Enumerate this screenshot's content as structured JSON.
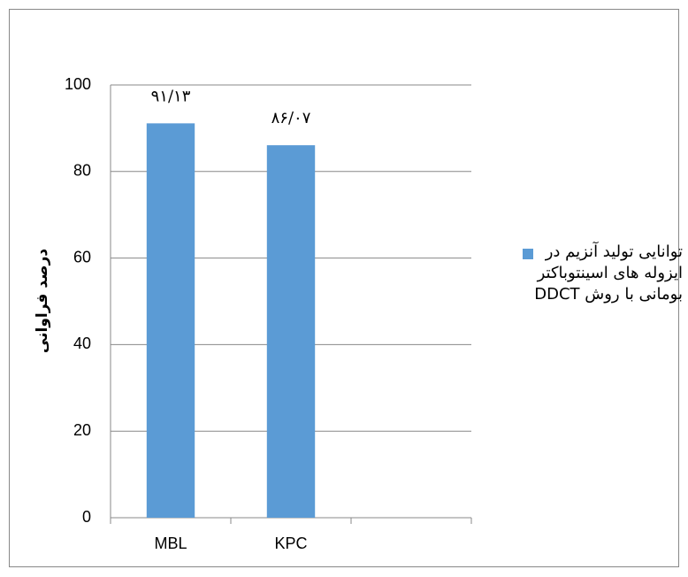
{
  "chart_data": {
    "type": "bar",
    "y_label": "درصد فراوانی",
    "categories": [
      "MBL",
      "KPC",
      null
    ],
    "series": [
      {
        "name": "توانایی تولید آنزیم در ایزوله های اسینتوباکتر بومانی با روش DDCT",
        "color": "#5b9bd5",
        "values": [
          91.13,
          86.07,
          null
        ],
        "value_labels": [
          "۹۱/۱۳",
          "۸۶/۰۷",
          null
        ]
      }
    ],
    "ylim": [
      0,
      100
    ],
    "yticks": [
      0,
      20,
      40,
      60,
      80,
      100
    ],
    "grid": true,
    "legend": "right"
  }
}
